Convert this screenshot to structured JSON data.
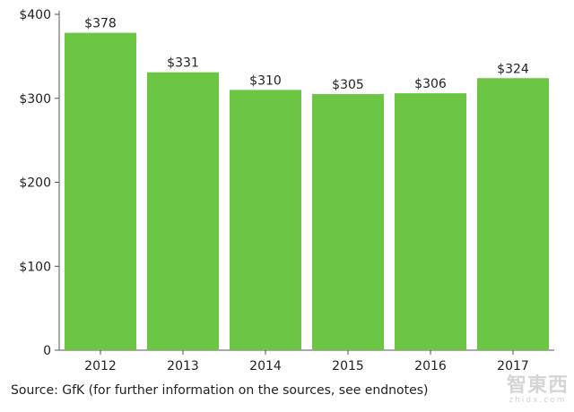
{
  "chart_data": {
    "type": "bar",
    "categories": [
      "2012",
      "2013",
      "2014",
      "2015",
      "2016",
      "2017"
    ],
    "values": [
      378,
      331,
      310,
      305,
      306,
      324
    ],
    "data_labels": [
      "$378",
      "$331",
      "$310",
      "$305",
      "$306",
      "$324"
    ],
    "y_ticks": [
      0,
      100,
      200,
      300,
      400
    ],
    "y_tick_labels": [
      "0",
      "$100",
      "$200",
      "$300",
      "$400"
    ],
    "ylim": [
      0,
      400
    ],
    "grid": false,
    "bar_color": "#6cc644",
    "axis_color": "#555555",
    "title": "",
    "xlabel": "",
    "ylabel": ""
  },
  "source_note": "Source: GfK (for further information on the sources, see endnotes)",
  "watermark": {
    "main": "智東西",
    "sub": "zhidx.com"
  }
}
